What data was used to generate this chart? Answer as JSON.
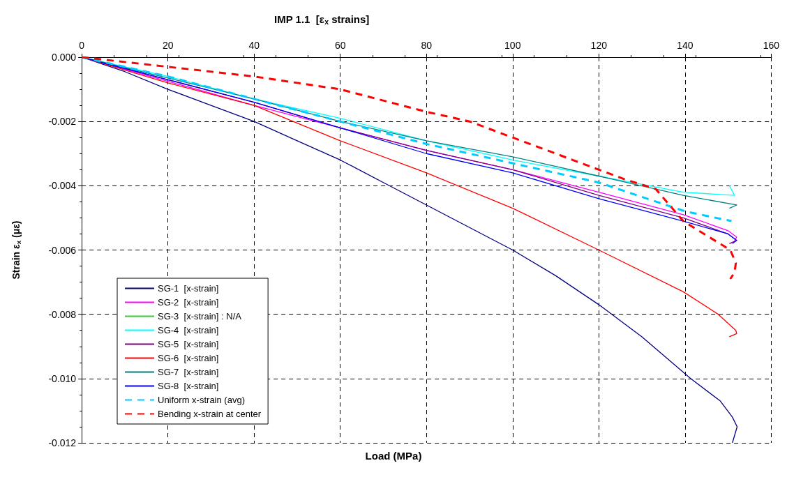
{
  "chart_data": {
    "type": "line",
    "title": "IMP 1.1  [ε$_{x}$ strains]",
    "xlabel": "Load (MPa)",
    "ylabel": "Strain ε$_{x}$ (με)",
    "xlim": [
      0,
      160
    ],
    "xticks": [
      0,
      20,
      40,
      60,
      80,
      100,
      120,
      140,
      160
    ],
    "ylim": [
      -0.012,
      0
    ],
    "yticks": [
      {
        "value": -0.012,
        "label": "-0.012"
      },
      {
        "value": -0.01,
        "label": "-0.010"
      },
      {
        "value": -0.008,
        "label": "-0.008"
      },
      {
        "value": -0.006,
        "label": "-0.006"
      },
      {
        "value": -0.004,
        "label": "-0.004"
      },
      {
        "value": -0.002,
        "label": "-0.002"
      },
      {
        "value": 0,
        "label": "0.000"
      }
    ],
    "grid": true,
    "legend": "bottom left",
    "marker": "none",
    "line_style": "solid",
    "series": [
      {
        "name": "SG-1  [x-strain]",
        "color": "#000080",
        "x": [
          0,
          10,
          20,
          30,
          40,
          50,
          60,
          70,
          80,
          90,
          100,
          110,
          120,
          130,
          141.3,
          148.2,
          151,
          152.1,
          151
        ],
        "values": [
          0,
          -0.00045,
          -0.001,
          -0.0015,
          -0.002,
          -0.0026,
          -0.0032,
          -0.0039,
          -0.0046,
          -0.0053,
          -0.006,
          -0.0068,
          -0.0077,
          -0.0087,
          -0.01,
          -0.0107,
          -0.0112,
          -0.0115,
          -0.012
        ]
      },
      {
        "name": "SG-2  [x-strain]",
        "color": "#ff00ff",
        "x": [
          0,
          20,
          40,
          60,
          80,
          100,
          120,
          139.6,
          150,
          152,
          151.5
        ],
        "values": [
          0,
          -0.00075,
          -0.0015,
          -0.0022,
          -0.0029,
          -0.0035,
          -0.0042,
          -0.0049,
          -0.0054,
          -0.0056,
          -0.0057
        ]
      },
      {
        "name": "SG-3  [x-strain] : N/A",
        "color": "#33cc33"
      },
      {
        "name": "SG-4  [x-strain]",
        "color": "#00ffff",
        "x": [
          0,
          20,
          40,
          60,
          80,
          100,
          120,
          139.6,
          151.5,
          150.3
        ],
        "values": [
          0,
          -0.0006,
          -0.0013,
          -0.0019,
          -0.0026,
          -0.0032,
          -0.0037,
          -0.0042,
          -0.0043,
          -0.004
        ]
      },
      {
        "name": "SG-5  [x-strain]",
        "color": "#800080",
        "x": [
          0,
          20,
          40,
          60,
          80,
          100,
          120,
          139.6,
          150,
          152,
          150.3
        ],
        "values": [
          0,
          -0.0007,
          -0.0014,
          -0.0022,
          -0.0029,
          -0.0035,
          -0.0043,
          -0.005,
          -0.0055,
          -0.0057,
          -0.0058
        ]
      },
      {
        "name": "SG-6  [x-strain]",
        "color": "#ff0000",
        "x": [
          0,
          20,
          40,
          60,
          80,
          100,
          120,
          139.6,
          147.7,
          151.8,
          152,
          150.3
        ],
        "values": [
          0,
          -0.0008,
          -0.0015,
          -0.0026,
          -0.0036,
          -0.0047,
          -0.006,
          -0.0073,
          -0.008,
          -0.0085,
          -0.0086,
          -0.0087
        ]
      },
      {
        "name": "SG-7  [x-strain]",
        "color": "#008080",
        "x": [
          0,
          20,
          40,
          60,
          80,
          100,
          120,
          139.6,
          152,
          150.3
        ],
        "values": [
          0,
          -0.00065,
          -0.0013,
          -0.002,
          -0.0026,
          -0.0031,
          -0.0037,
          -0.0043,
          -0.0046,
          -0.0047
        ]
      },
      {
        "name": "SG-8  [x-strain]",
        "color": "#0000ff",
        "x": [
          0,
          20,
          40,
          60,
          80,
          100,
          120,
          139.6,
          150,
          152,
          151
        ],
        "values": [
          0,
          -0.0007,
          -0.0014,
          -0.0022,
          -0.003,
          -0.0036,
          -0.0044,
          -0.0051,
          -0.0055,
          -0.0057,
          -0.0058
        ]
      },
      {
        "name": "Uniform x-strain (avg)",
        "color": "#00ccff",
        "line_style": "dashed",
        "x": [
          0,
          20,
          40,
          60,
          80,
          100,
          120,
          140.1,
          150.8
        ],
        "values": [
          0,
          -0.0006,
          -0.0013,
          -0.002,
          -0.0027,
          -0.0033,
          -0.0039,
          -0.0048,
          -0.0051
        ]
      },
      {
        "name": "Bending x-strain at center",
        "color": "#ff0000",
        "line_style": "dashed",
        "x": [
          0,
          20,
          40,
          60,
          80,
          90,
          100,
          110,
          120,
          126,
          133.2,
          139.6,
          150.5,
          151.8,
          151.5,
          150.5
        ],
        "values": [
          0,
          -0.0003,
          -0.0006,
          -0.001,
          -0.0017,
          -0.002,
          -0.0025,
          -0.003,
          -0.0035,
          -0.0038,
          -0.0041,
          -0.0051,
          -0.006,
          -0.0064,
          -0.0067,
          -0.0069
        ]
      }
    ]
  }
}
